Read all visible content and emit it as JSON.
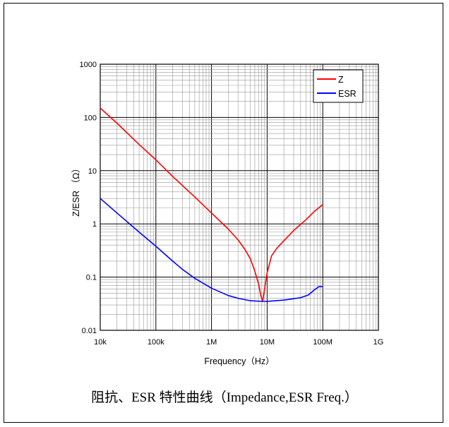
{
  "caption": "阻抗、ESR 特性曲线（Impedance,ESR Freq.）",
  "chart_data": {
    "type": "line",
    "title": "",
    "xlabel": "Frequency（Hz）",
    "ylabel": "Z/ESR （Ω）",
    "xscale": "log",
    "yscale": "log",
    "xlim": [
      10000,
      1000000000
    ],
    "ylim": [
      0.01,
      1000
    ],
    "grid": true,
    "legend_position": "top-right",
    "x_ticks": [
      {
        "value": 10000,
        "label": "10k"
      },
      {
        "value": 100000,
        "label": "100k"
      },
      {
        "value": 1000000,
        "label": "1M"
      },
      {
        "value": 10000000,
        "label": "10M"
      },
      {
        "value": 100000000,
        "label": "100M"
      },
      {
        "value": 1000000000,
        "label": "1G"
      }
    ],
    "y_ticks": [
      {
        "value": 0.01,
        "label": "0.01"
      },
      {
        "value": 0.1,
        "label": "0.1"
      },
      {
        "value": 1,
        "label": "1"
      },
      {
        "value": 10,
        "label": "10"
      },
      {
        "value": 100,
        "label": "100"
      },
      {
        "value": 1000,
        "label": "1000"
      }
    ],
    "series": [
      {
        "name": "Z",
        "color": "#ff0000",
        "points": [
          [
            10000,
            150
          ],
          [
            20000,
            78
          ],
          [
            50000,
            31
          ],
          [
            100000,
            16
          ],
          [
            200000,
            7.8
          ],
          [
            500000,
            3.2
          ],
          [
            1000000,
            1.6
          ],
          [
            2000000,
            0.8
          ],
          [
            3000000,
            0.5
          ],
          [
            4000000,
            0.33
          ],
          [
            5000000,
            0.22
          ],
          [
            6000000,
            0.13
          ],
          [
            7000000,
            0.075
          ],
          [
            7700000,
            0.045
          ],
          [
            8300000,
            0.035
          ],
          [
            9000000,
            0.06
          ],
          [
            10000000,
            0.12
          ],
          [
            12000000,
            0.25
          ],
          [
            15000000,
            0.35
          ],
          [
            20000000,
            0.48
          ],
          [
            30000000,
            0.75
          ],
          [
            50000000,
            1.2
          ],
          [
            70000000,
            1.7
          ],
          [
            100000000,
            2.3
          ]
        ]
      },
      {
        "name": "ESR",
        "color": "#0000ff",
        "points": [
          [
            10000,
            3.0
          ],
          [
            20000,
            1.6
          ],
          [
            50000,
            0.7
          ],
          [
            100000,
            0.38
          ],
          [
            200000,
            0.2
          ],
          [
            300000,
            0.14
          ],
          [
            500000,
            0.095
          ],
          [
            1000000,
            0.062
          ],
          [
            2000000,
            0.045
          ],
          [
            3000000,
            0.04
          ],
          [
            5000000,
            0.036
          ],
          [
            8000000,
            0.035
          ],
          [
            10000000,
            0.035
          ],
          [
            20000000,
            0.037
          ],
          [
            40000000,
            0.041
          ],
          [
            55000000,
            0.046
          ],
          [
            70000000,
            0.057
          ],
          [
            85000000,
            0.066
          ],
          [
            100000000,
            0.066
          ]
        ]
      }
    ]
  }
}
